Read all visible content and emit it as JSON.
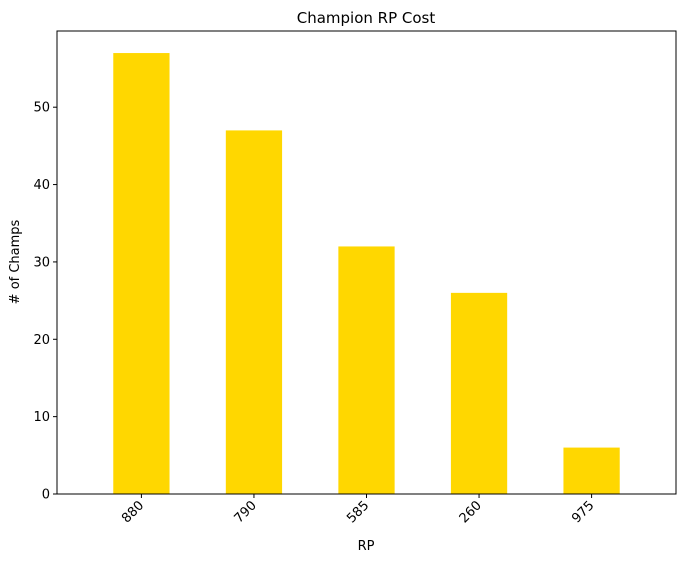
{
  "chart_data": {
    "type": "bar",
    "title": "Champion RP Cost",
    "xlabel": "RP",
    "ylabel": "# of Champs",
    "categories": [
      "880",
      "790",
      "585",
      "260",
      "975"
    ],
    "values": [
      57,
      47,
      32,
      26,
      6
    ],
    "ylim": [
      0,
      59.85
    ],
    "yticks": [
      0,
      10,
      20,
      30,
      40,
      50
    ],
    "xtick_rotation": 45,
    "grid": false,
    "bar_color": "#ffd700"
  }
}
